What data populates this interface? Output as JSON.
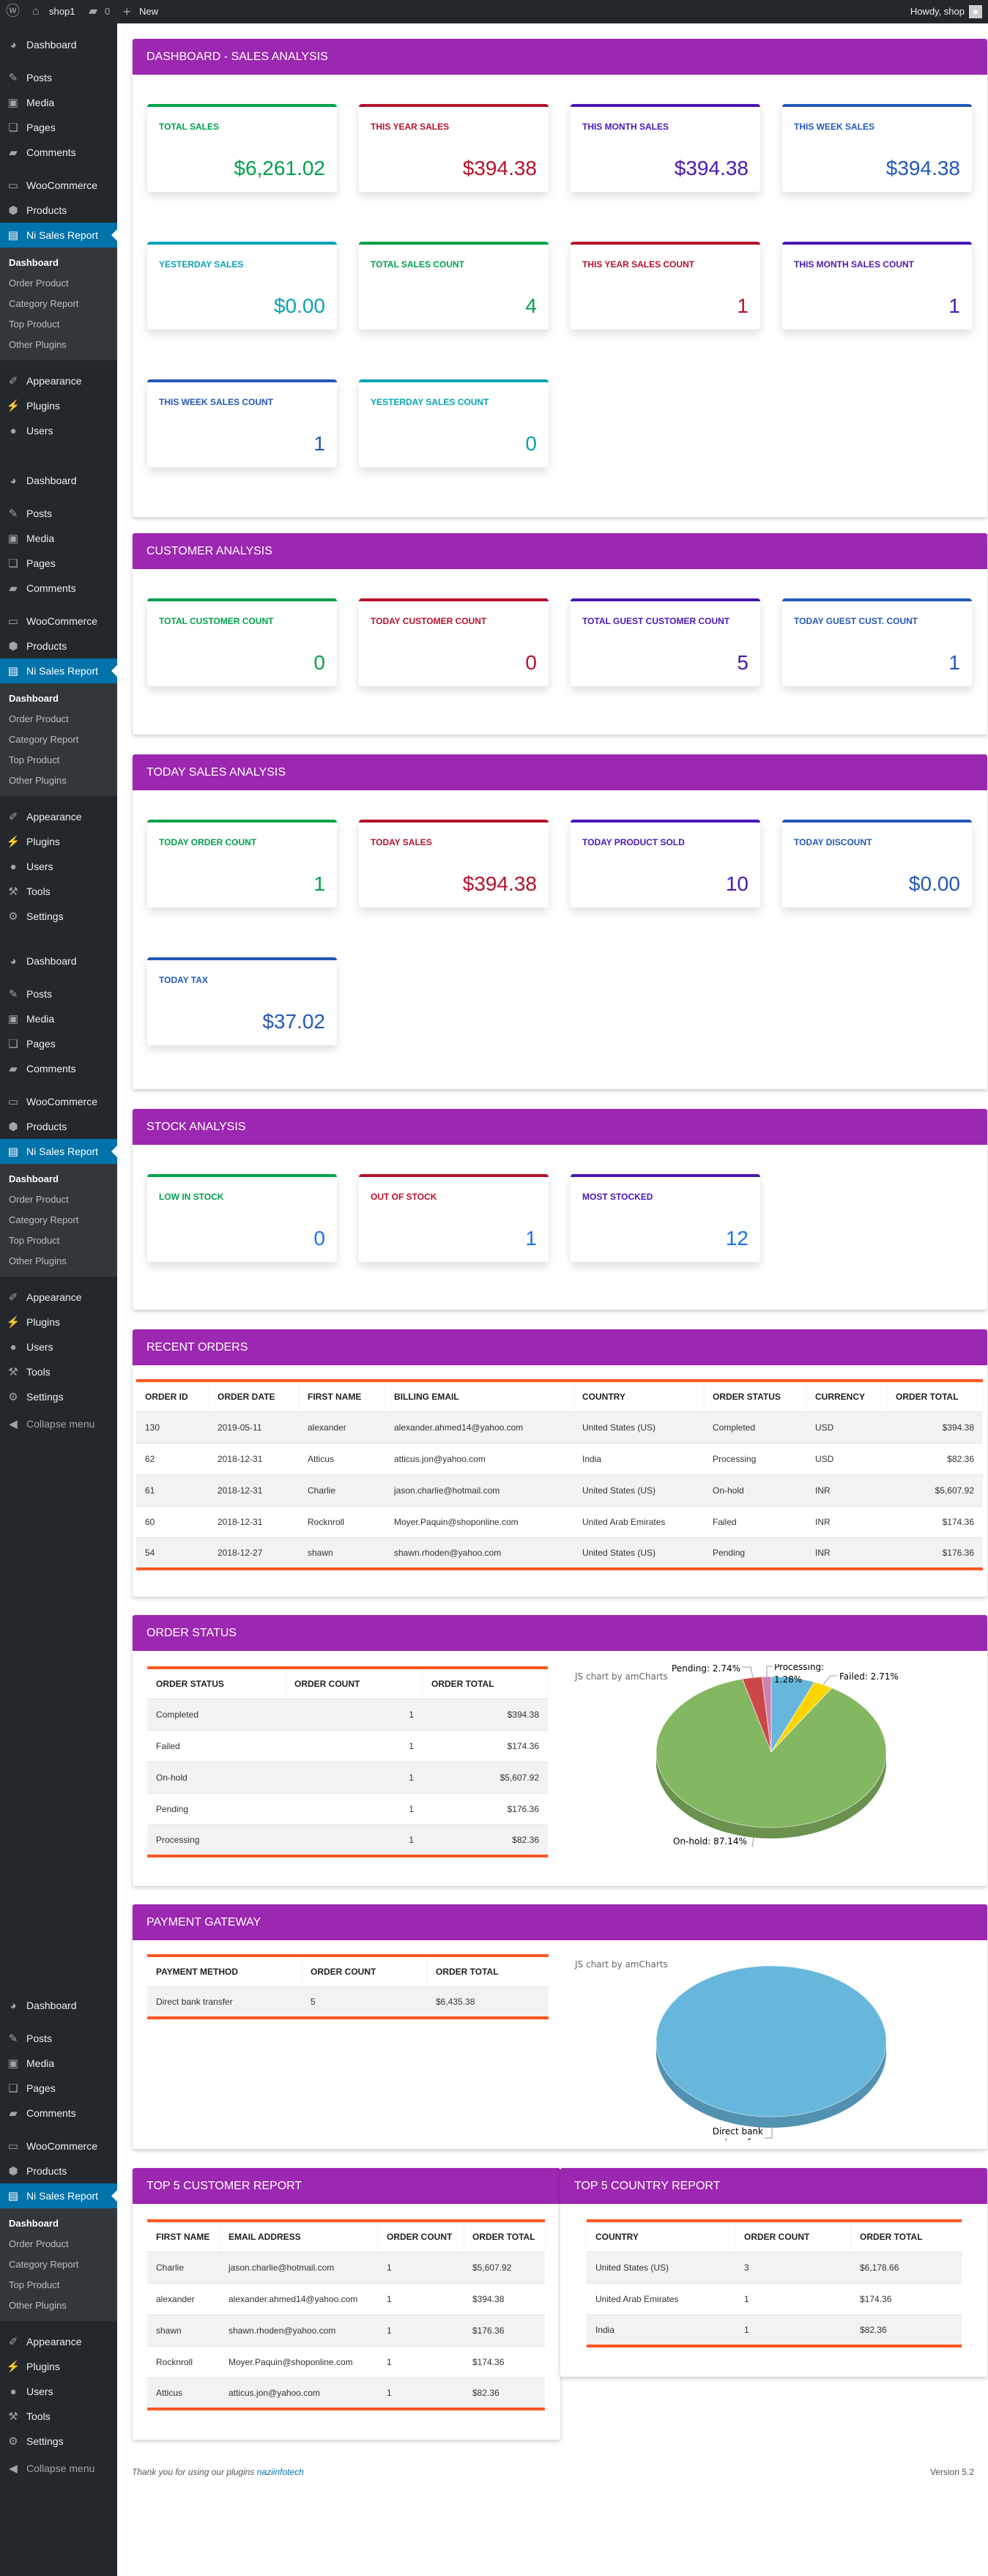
{
  "admin_bar": {
    "site_name": "shop1",
    "comment_count": "0",
    "new_label": "New",
    "howdy": "Howdy, shop"
  },
  "sidebar": {
    "menu": [
      {
        "label": "Dashboard",
        "icon": "dashboard-icon"
      },
      {
        "label": "Posts",
        "icon": "pin-icon"
      },
      {
        "label": "Media",
        "icon": "media-icon"
      },
      {
        "label": "Pages",
        "icon": "pages-icon"
      },
      {
        "label": "Comments",
        "icon": "comment-icon"
      },
      {
        "label": "WooCommerce",
        "icon": "woo-icon"
      },
      {
        "label": "Products",
        "icon": "box-icon"
      },
      {
        "label": "Ni Sales Report",
        "icon": "report-icon",
        "current": true
      },
      {
        "label": "Appearance",
        "icon": "brush-icon"
      },
      {
        "label": "Plugins",
        "icon": "plugin-icon"
      },
      {
        "label": "Users",
        "icon": "user-icon"
      },
      {
        "label": "Tools",
        "icon": "wrench-icon"
      },
      {
        "label": "Settings",
        "icon": "settings-icon"
      }
    ],
    "submenu": [
      {
        "label": "Dashboard",
        "current": true
      },
      {
        "label": "Order Product"
      },
      {
        "label": "Category Report"
      },
      {
        "label": "Top Product"
      },
      {
        "label": "Other Plugins"
      }
    ],
    "collapse_label": "Collapse menu"
  },
  "colors": {
    "green": "#00a14b",
    "red": "#b5122a",
    "purple": "#4a17b3",
    "blue": "#2358b6",
    "teal": "#0aa3b5",
    "bright_blue": "#1a73e8",
    "header": "#9c27b0",
    "accent_line": "#ff5722"
  },
  "sections": [
    {
      "title": "DASHBOARD - SALES ANALYSIS",
      "cards": [
        {
          "label": "TOTAL SALES",
          "value": "$6,261.02",
          "color": "#00a14b"
        },
        {
          "label": "THIS YEAR SALES",
          "value": "$394.38",
          "color": "#b5122a"
        },
        {
          "label": "THIS MONTH SALES",
          "value": "$394.38",
          "color": "#4a17b3"
        },
        {
          "label": "THIS WEEK SALES",
          "value": "$394.38",
          "color": "#2358b6"
        },
        {
          "label": "YESTERDAY SALES",
          "value": "$0.00",
          "color": "#0aa3b5"
        },
        {
          "label": "TOTAL SALES COUNT",
          "value": "4",
          "color": "#00a14b"
        },
        {
          "label": "THIS YEAR SALES COUNT",
          "value": "1",
          "color": "#b5122a"
        },
        {
          "label": "THIS MONTH SALES COUNT",
          "value": "1",
          "color": "#4a17b3"
        },
        {
          "label": "THIS WEEK SALES COUNT",
          "value": "1",
          "color": "#2358b6"
        },
        {
          "label": "YESTERDAY SALES COUNT",
          "value": "0",
          "color": "#0aa3b5"
        }
      ]
    },
    {
      "title": "CUSTOMER ANALYSIS",
      "cards": [
        {
          "label": "TOTAL CUSTOMER COUNT",
          "value": "0",
          "color": "#00a14b"
        },
        {
          "label": "TODAY CUSTOMER COUNT",
          "value": "0",
          "color": "#b5122a"
        },
        {
          "label": "TOTAL GUEST CUSTOMER COUNT",
          "value": "5",
          "color": "#4a17b3"
        },
        {
          "label": "TODAY GUEST CUST. COUNT",
          "value": "1",
          "color": "#2358b6"
        }
      ]
    },
    {
      "title": "TODAY SALES ANALYSIS",
      "cards": [
        {
          "label": "TODAY ORDER COUNT",
          "value": "1",
          "color": "#00a14b"
        },
        {
          "label": "TODAY SALES",
          "value": "$394.38",
          "color": "#b5122a"
        },
        {
          "label": "TODAY PRODUCT SOLD",
          "value": "10",
          "color": "#4a17b3"
        },
        {
          "label": "TODAY DISCOUNT",
          "value": "$0.00",
          "color": "#2358b6"
        },
        {
          "label": "TODAY TAX",
          "value": "$37.02",
          "color": "#2358b6"
        }
      ]
    },
    {
      "title": "STOCK ANALYSIS",
      "cards": [
        {
          "label": "LOW IN STOCK",
          "value": "0",
          "color": "#00a14b",
          "value_color": "#1a73e8"
        },
        {
          "label": "OUT OF STOCK",
          "value": "1",
          "color": "#b5122a",
          "value_color": "#1a73e8"
        },
        {
          "label": "MOST STOCKED",
          "value": "12",
          "color": "#4a17b3",
          "value_color": "#1a73e8"
        }
      ]
    }
  ],
  "recent_orders": {
    "title": "RECENT ORDERS",
    "columns": [
      "ORDER ID",
      "ORDER DATE",
      "FIRST NAME",
      "BILLING EMAIL",
      "COUNTRY",
      "ORDER STATUS",
      "CURRENCY",
      "ORDER TOTAL"
    ],
    "rows": [
      [
        "130",
        "2019-05-11",
        "alexander",
        "alexander.ahmed14@yahoo.com",
        "United States (US)",
        "Completed",
        "USD",
        "$394.38"
      ],
      [
        "62",
        "2018-12-31",
        "Atticus",
        "atticus.jon@yahoo.com",
        "India",
        "Processing",
        "USD",
        "$82.36"
      ],
      [
        "61",
        "2018-12-31",
        "Charlie",
        "jason.charlie@hotmail.com",
        "United States (US)",
        "On-hold",
        "INR",
        "$5,607.92"
      ],
      [
        "60",
        "2018-12-31",
        "Rocknroll",
        "Moyer.Paquin@shoponline.com",
        "United Arab Emirates",
        "Failed",
        "INR",
        "$174.36"
      ],
      [
        "54",
        "2018-12-27",
        "shawn",
        "shawn.rhoden@yahoo.com",
        "United States (US)",
        "Pending",
        "INR",
        "$176.36"
      ]
    ]
  },
  "order_status": {
    "title": "ORDER STATUS",
    "columns": [
      "ORDER STATUS",
      "ORDER COUNT",
      "ORDER TOTAL"
    ],
    "rows": [
      [
        "Completed",
        "1",
        "$394.38"
      ],
      [
        "Failed",
        "1",
        "$174.36"
      ],
      [
        "On-hold",
        "1",
        "$5,607.92"
      ],
      [
        "Pending",
        "1",
        "$176.36"
      ],
      [
        "Processing",
        "1",
        "$82.36"
      ]
    ],
    "chart": {
      "credit": "JS chart by amCharts",
      "type": "pie",
      "slices": [
        {
          "label": "Completed",
          "percent": 6.13,
          "color": "#67b7dc",
          "label_visible": false
        },
        {
          "label": "Failed",
          "percent": 2.71,
          "color": "#fdd400",
          "label_visible": true
        },
        {
          "label": "On-hold",
          "percent": 87.14,
          "color": "#84b761",
          "label_visible": true
        },
        {
          "label": "Pending",
          "percent": 2.74,
          "color": "#cc4748",
          "label_visible": true
        },
        {
          "label": "Processing",
          "percent": 1.28,
          "color": "#cd82ad",
          "label_visible": true
        }
      ]
    }
  },
  "payment_gateway": {
    "title": "PAYMENT GATEWAY",
    "columns": [
      "PAYMENT METHOD",
      "ORDER COUNT",
      "ORDER TOTAL"
    ],
    "rows": [
      [
        "Direct bank transfer",
        "5",
        "$6,435.38"
      ]
    ],
    "chart": {
      "credit": "JS chart by amCharts",
      "type": "pie",
      "slices": [
        {
          "label": "Direct bank transfer",
          "percent": 100,
          "color": "#67b7dc",
          "label_lines": [
            "Direct bank",
            "transfer"
          ]
        }
      ]
    }
  },
  "top_customers": {
    "title": "TOP 5 CUSTOMER REPORT",
    "columns": [
      "FIRST NAME",
      "EMAIL ADDRESS",
      "ORDER COUNT",
      "ORDER TOTAL"
    ],
    "rows": [
      [
        "Charlie",
        "jason.charlie@hotmail.com",
        "1",
        "$5,607.92"
      ],
      [
        "alexander",
        "alexander.ahmed14@yahoo.com",
        "1",
        "$394.38"
      ],
      [
        "shawn",
        "shawn.rhoden@yahoo.com",
        "1",
        "$176.36"
      ],
      [
        "Rocknroll",
        "Moyer.Paquin@shoponline.com",
        "1",
        "$174.36"
      ],
      [
        "Atticus",
        "atticus.jon@yahoo.com",
        "1",
        "$82.36"
      ]
    ]
  },
  "top_countries": {
    "title": "TOP 5 COUNTRY REPORT",
    "columns": [
      "COUNTRY",
      "ORDER COUNT",
      "ORDER TOTAL"
    ],
    "rows": [
      [
        "United States (US)",
        "3",
        "$6,178.66"
      ],
      [
        "United Arab Emirates",
        "1",
        "$174.36"
      ],
      [
        "India",
        "1",
        "$82.36"
      ]
    ]
  },
  "footer": {
    "thanks": "Thank you for using our plugins ",
    "link": "naziinfotech",
    "version": "Version 5.2"
  }
}
